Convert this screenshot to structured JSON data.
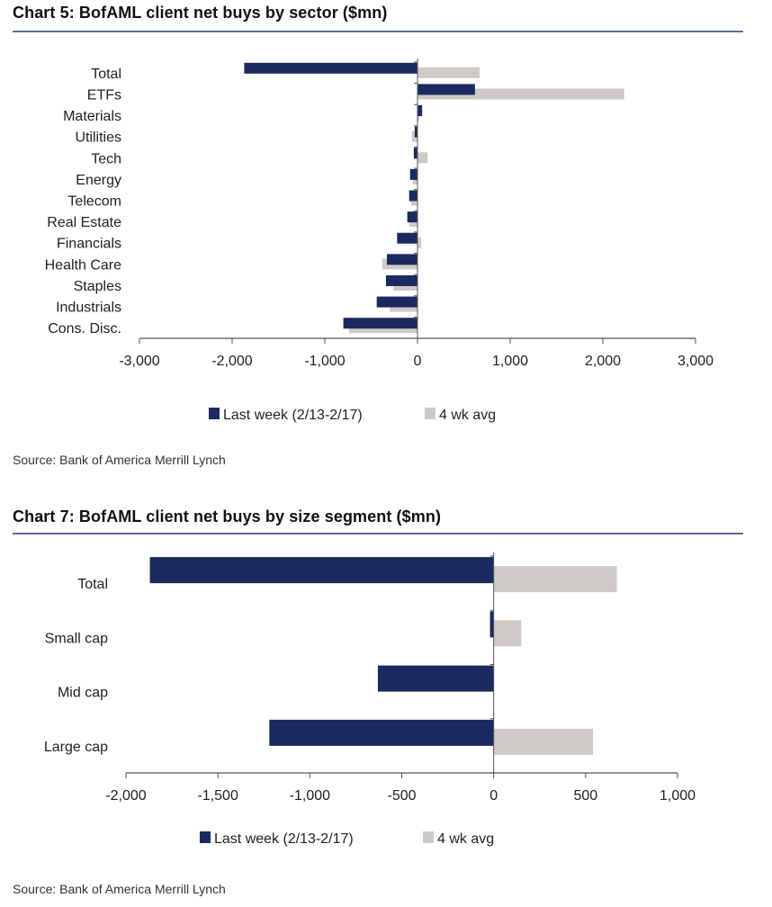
{
  "colors": {
    "last_week": "#1b2a5e",
    "avg": "#cfcac6",
    "axis": "#555555",
    "rule": "#5a6f93"
  },
  "chart_data": [
    {
      "type": "bar",
      "orientation": "horizontal",
      "title": "Chart 5: BofAML client net buys by sector ($mn)",
      "categories": [
        "Total",
        "ETFs",
        "Materials",
        "Utilities",
        "Tech",
        "Energy",
        "Telecom",
        "Real Estate",
        "Financials",
        "Health Care",
        "Staples",
        "Industrials",
        "Cons. Disc."
      ],
      "series": [
        {
          "name": "Last week (2/13-2/17)",
          "values": [
            -1870,
            620,
            50,
            -30,
            -40,
            -80,
            -90,
            -110,
            -220,
            -330,
            -340,
            -440,
            -800
          ]
        },
        {
          "name": "4 wk avg",
          "values": [
            670,
            2230,
            20,
            -60,
            110,
            -50,
            -70,
            -90,
            40,
            -380,
            -260,
            -300,
            -740
          ]
        }
      ],
      "xlim": [
        -3000,
        3000
      ],
      "xticks": [
        -3000,
        -2000,
        -1000,
        0,
        1000,
        2000,
        3000
      ],
      "xtick_labels": [
        "-3,000",
        "-2,000",
        "-1,000",
        "0",
        "1,000",
        "2,000",
        "3,000"
      ],
      "legend": [
        "Last week (2/13-2/17)",
        "4 wk avg"
      ],
      "legend_position": "bottom-center",
      "source": "Source: Bank of America Merrill Lynch"
    },
    {
      "type": "bar",
      "orientation": "horizontal",
      "title": "Chart 7: BofAML client net buys by size segment ($mn)",
      "categories": [
        "Total",
        "Small cap",
        "Mid cap",
        "Large cap"
      ],
      "series": [
        {
          "name": "Last week (2/13-2/17)",
          "values": [
            -1870,
            -20,
            -630,
            -1220
          ]
        },
        {
          "name": "4 wk avg",
          "values": [
            670,
            150,
            0,
            540
          ]
        }
      ],
      "xlim": [
        -2000,
        1000
      ],
      "xticks": [
        -2000,
        -1500,
        -1000,
        -500,
        0,
        500,
        1000
      ],
      "xtick_labels": [
        "-2,000",
        "-1,500",
        "-1,000",
        "-500",
        "0",
        "500",
        "1,000"
      ],
      "legend": [
        "Last week (2/13-2/17)",
        "4 wk avg"
      ],
      "legend_position": "bottom-center",
      "source": "Source: Bank of America Merrill Lynch"
    }
  ]
}
